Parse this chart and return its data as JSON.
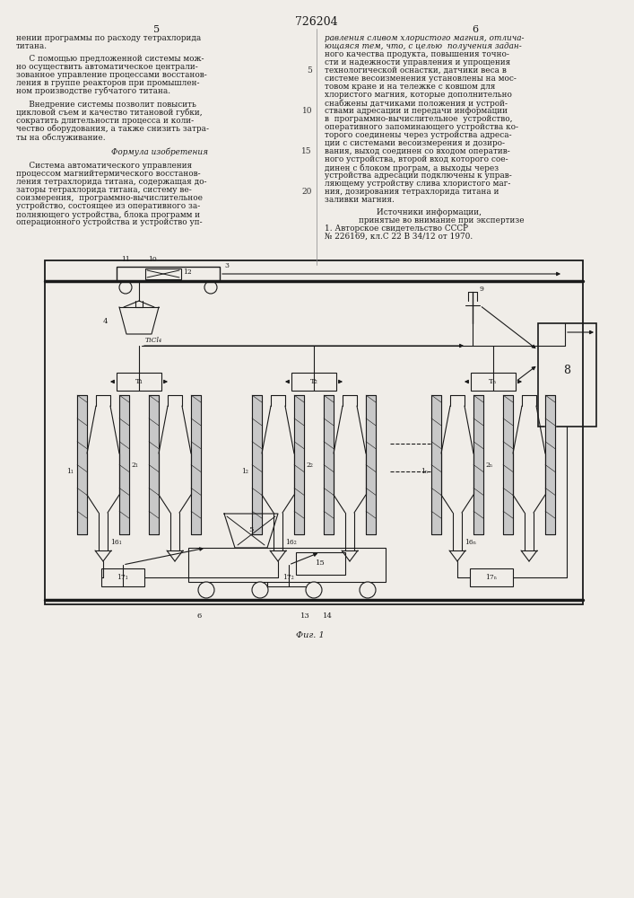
{
  "page_title": "726204",
  "col_left_num": "5",
  "col_right_num": "6",
  "bg_color": "#f0ede8",
  "text_color": "#1a1a1a",
  "line_color": "#1a1a1a",
  "fig_caption": "Фиг. 1"
}
